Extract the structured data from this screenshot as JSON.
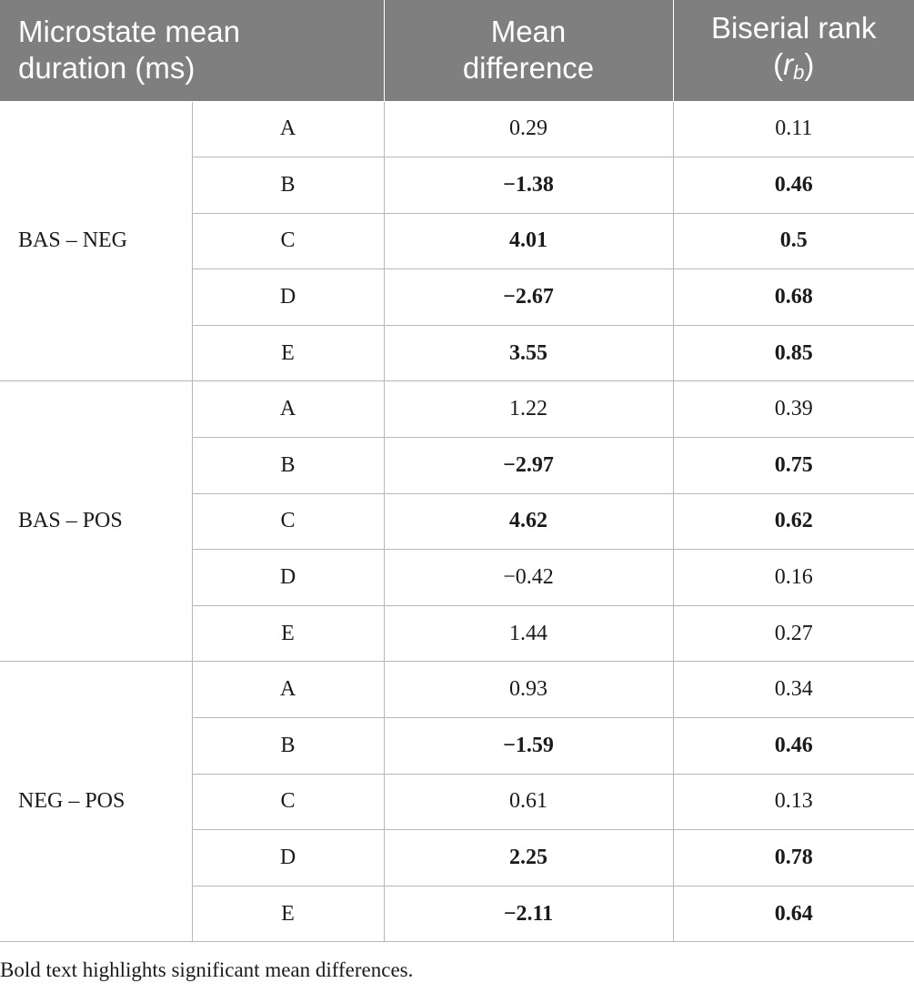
{
  "header": {
    "col1_line1": "Microstate mean",
    "col1_line2": "duration (ms)",
    "col2_line1": "Mean",
    "col2_line2": "difference",
    "col3_line1": "Biserial rank",
    "col3_r": "r",
    "col3_sub": "b"
  },
  "groups": [
    {
      "label": "BAS – NEG",
      "rows": [
        {
          "state": "A",
          "mean_diff": "0.29",
          "rb": "0.11",
          "significant": false
        },
        {
          "state": "B",
          "mean_diff": "−1.38",
          "rb": "0.46",
          "significant": true
        },
        {
          "state": "C",
          "mean_diff": "4.01",
          "rb": "0.5",
          "significant": true
        },
        {
          "state": "D",
          "mean_diff": "−2.67",
          "rb": "0.68",
          "significant": true
        },
        {
          "state": "E",
          "mean_diff": "3.55",
          "rb": "0.85",
          "significant": true
        }
      ]
    },
    {
      "label": "BAS – POS",
      "rows": [
        {
          "state": "A",
          "mean_diff": "1.22",
          "rb": "0.39",
          "significant": false
        },
        {
          "state": "B",
          "mean_diff": "−2.97",
          "rb": "0.75",
          "significant": true
        },
        {
          "state": "C",
          "mean_diff": "4.62",
          "rb": "0.62",
          "significant": true
        },
        {
          "state": "D",
          "mean_diff": "−0.42",
          "rb": "0.16",
          "significant": false
        },
        {
          "state": "E",
          "mean_diff": "1.44",
          "rb": "0.27",
          "significant": false
        }
      ]
    },
    {
      "label": "NEG – POS",
      "rows": [
        {
          "state": "A",
          "mean_diff": "0.93",
          "rb": "0.34",
          "significant": false
        },
        {
          "state": "B",
          "mean_diff": "−1.59",
          "rb": "0.46",
          "significant": true
        },
        {
          "state": "C",
          "mean_diff": "0.61",
          "rb": "0.13",
          "significant": false
        },
        {
          "state": "D",
          "mean_diff": "2.25",
          "rb": "0.78",
          "significant": true
        },
        {
          "state": "E",
          "mean_diff": "−2.11",
          "rb": "0.64",
          "significant": true
        }
      ]
    }
  ],
  "footnote": "Bold text highlights significant mean differences.",
  "colors": {
    "header_bg": "#7f7f7f",
    "header_text": "#ffffff",
    "grid": "#b8b8b8"
  }
}
